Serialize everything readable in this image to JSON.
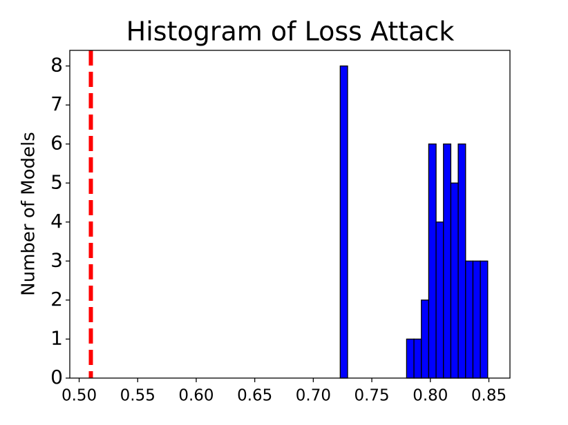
{
  "chart_data": {
    "type": "histogram",
    "title": "Histogram of Loss Attack",
    "ylabel": "Number of Models",
    "bins": [
      0.723,
      0.7293,
      0.7356,
      0.7419,
      0.7482,
      0.7545,
      0.7608,
      0.7671,
      0.7734,
      0.7797,
      0.786,
      0.7923,
      0.7986,
      0.8049,
      0.8112,
      0.8175,
      0.8238,
      0.8301,
      0.8364,
      0.8427,
      0.849
    ],
    "values": [
      8,
      0,
      0,
      0,
      0,
      0,
      0,
      0,
      0,
      1,
      1,
      2,
      6,
      4,
      6,
      5,
      6,
      3,
      3,
      3
    ],
    "color": "#0000ff",
    "edgecolor": "#000000",
    "vline": {
      "value": 0.51,
      "color": "#ff0000"
    },
    "xlim": [
      0.492,
      0.868
    ],
    "ylim": [
      0,
      8.4
    ],
    "xticks": [
      {
        "value": 0.5,
        "label": "0.50"
      },
      {
        "value": 0.55,
        "label": "0.55"
      },
      {
        "value": 0.6,
        "label": "0.60"
      },
      {
        "value": 0.65,
        "label": "0.65"
      },
      {
        "value": 0.7,
        "label": "0.70"
      },
      {
        "value": 0.75,
        "label": "0.75"
      },
      {
        "value": 0.8,
        "label": "0.80"
      },
      {
        "value": 0.85,
        "label": "0.85"
      }
    ],
    "yticks": [
      0,
      1,
      2,
      3,
      4,
      5,
      6,
      7,
      8
    ]
  }
}
